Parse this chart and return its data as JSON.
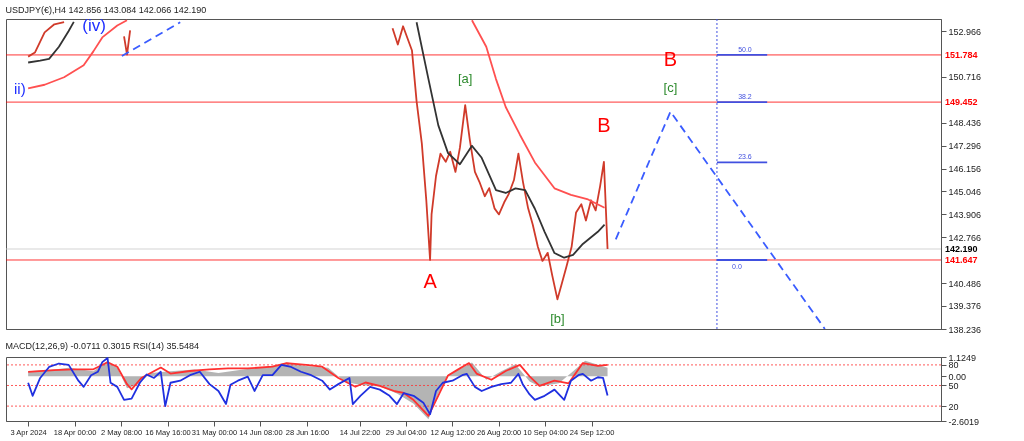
{
  "chart_data": [
    {
      "type": "line",
      "title": "USDJPY(€),H4 142.856 143.084 142.066 142.190",
      "xlim": [
        "2024-03-27T20:00",
        "2025-01-10T07:00"
      ],
      "ylim": [
        138.236,
        153.56
      ],
      "yticks": [
        152.966,
        150.716,
        148.436,
        147.296,
        146.156,
        145.046,
        143.906,
        142.766,
        140.486,
        139.376,
        138.236
      ],
      "tick_labels": "y",
      "grid": false,
      "series": [
        {
          "color": "#d03a2a",
          "x": [
            "2024-04-03T16:00",
            "2024-04-05T18:00",
            "2024-04-08T18:00",
            "2024-04-11T18:00",
            "2024-04-14T18:00",
            "2024-04-17T02:00",
            "2024-05-03T06:00",
            "2024-05-04T04:00",
            "2024-05-05T03:00",
            "2024-05-06T01:00",
            "2024-07-25T02:00",
            "2024-07-26T17:00",
            "2024-07-28T08:00",
            "2024-07-31T02:00",
            "2024-08-01T12:00",
            "2024-08-03T03:00",
            "2024-08-04T12:00",
            "2024-08-05T16:00",
            "2024-08-06T03:00",
            "2024-08-07T12:00",
            "2024-08-08T21:00",
            "2024-08-10T12:00",
            "2024-08-11T21:00",
            "2024-08-13T12:00",
            "2024-08-14T21:00",
            "2024-08-16T12:00",
            "2024-08-17T22:00",
            "2024-08-19T12:00",
            "2024-08-20T22:00",
            "2024-08-22T13:00",
            "2024-08-23T22:00",
            "2024-08-25T13:00",
            "2024-08-26T22:00",
            "2024-08-28T13:00",
            "2024-08-29T22:00",
            "2024-08-31T13:00",
            "2024-09-01T22:00",
            "2024-09-03T08:00",
            "2024-09-04T22:00",
            "2024-09-06T08:00",
            "2024-09-07T22:00",
            "2024-09-09T08:00",
            "2024-09-10T23:00",
            "2024-09-12T08:00",
            "2024-09-13T23:00",
            "2024-09-15T08:00",
            "2024-09-16T17:00",
            "2024-09-18T08:00",
            "2024-09-19T17:00",
            "2024-09-21T08:00",
            "2024-09-22T18:00",
            "2024-09-24T08:00",
            "2024-09-25T18:00",
            "2024-09-27T03:00",
            "2024-09-28T07:00",
            "2024-09-29T10:00"
          ],
          "values": [
            151.7,
            151.9,
            152.9,
            153.3,
            153.4,
            null,
            152.7,
            151.8,
            153.0,
            null,
            153.1,
            152.3,
            153.2,
            152.0,
            149.5,
            147.4,
            144.6,
            141.65,
            143.9,
            145.8,
            146.9,
            146.5,
            147.0,
            146.0,
            147.2,
            149.3,
            147.6,
            146.0,
            145.5,
            144.8,
            145.2,
            144.2,
            143.9,
            144.5,
            144.9,
            145.6,
            146.9,
            145.5,
            144.2,
            143.4,
            142.3,
            141.6,
            142.0,
            140.9,
            139.7,
            140.5,
            141.3,
            142.3,
            144.0,
            144.4,
            143.6,
            144.6,
            144.1,
            145.3,
            146.5,
            142.19
          ]
        },
        {
          "color": "#333333",
          "x": [
            "2024-04-03T16:00",
            "2024-04-07T09:00",
            "2024-04-10T03:00",
            "2024-04-13T04:00",
            "2024-04-16T04:00",
            "2024-04-17T18:00",
            "2024-04-18T17:00",
            "2024-08-01T12:00",
            "2024-08-05T04:00",
            "2024-08-08T05:00",
            "2024-08-11T05:00",
            "2024-08-14T21:00",
            "2024-08-18T14:00",
            "2024-08-21T14:00",
            "2024-08-26T00:00",
            "2024-08-29T00:00",
            "2024-09-01T00:00",
            "2024-09-04T00:00",
            "2024-09-07T00:00",
            "2024-09-10T00:00",
            "2024-09-13T01:00",
            "2024-09-16T01:00",
            "2024-09-18T19:00",
            "2024-09-21T19:00",
            "2024-09-26T10:00",
            "2024-09-28T12:00"
          ],
          "values": [
            151.41,
            151.5,
            151.59,
            152.19,
            152.97,
            153.42,
            null,
            153.4,
            150.59,
            148.3,
            146.93,
            146.38,
            147.29,
            146.7,
            145.1,
            144.96,
            145.19,
            145.1,
            144.18,
            143.04,
            141.99,
            141.76,
            141.9,
            142.44,
            143.04,
            143.4
          ]
        },
        {
          "color": "#ff5050",
          "x": [
            "2024-04-03T16:00",
            "2024-04-08T18:00",
            "2024-04-14T18:00",
            "2024-04-20T19:00",
            "2024-04-23T19:00",
            "2024-04-26T13:00",
            "2024-05-01T04:00",
            "2024-05-04T04:00",
            "2024-05-06T01:00",
            "2024-08-18T14:00",
            "2024-08-23T00:00",
            "2024-08-26T00:00",
            "2024-08-29T00:00",
            "2024-09-02T09:00",
            "2024-09-07T00:00",
            "2024-09-13T01:00",
            "2024-09-18T03:00",
            "2024-09-23T10:00",
            "2024-09-28T12:00"
          ],
          "values": [
            150.13,
            150.31,
            150.68,
            151.27,
            151.96,
            152.65,
            153.24,
            153.5,
            null,
            153.5,
            152.19,
            150.59,
            149.21,
            147.84,
            146.47,
            145.19,
            144.87,
            144.64,
            144.23
          ]
        },
        {
          "color": "#3a5cff",
          "line_style": "dashed",
          "x": [
            "2024-10-01T23:00",
            "2024-10-18T20:00",
            "2024-12-05T11:00"
          ],
          "values": [
            142.67,
            148.98,
            138.24
          ]
        },
        {
          "color": "#3a5cff",
          "line_style": "dashed",
          "x": [
            "2024-05-02T14:00",
            "2024-05-20T14:00"
          ],
          "values": [
            151.73,
            153.4
          ]
        },
        {
          "color": "#4050e0",
          "x": [
            "2024-11-02T04:00",
            "2024-11-17T16:00"
          ],
          "values": [
            151.784,
            151.784
          ]
        },
        {
          "color": "#4050e0",
          "x": [
            "2024-11-02T04:00",
            "2024-11-17T16:00"
          ],
          "values": [
            149.452,
            149.452
          ]
        },
        {
          "color": "#4050e0",
          "x": [
            "2024-11-02T04:00",
            "2024-11-17T16:00"
          ],
          "values": [
            146.47,
            146.47
          ]
        },
        {
          "color": "#4050e0",
          "x": [
            "2024-11-02T04:00",
            "2024-11-17T16:00"
          ],
          "values": [
            141.647,
            141.647
          ]
        }
      ],
      "ref_lines": [
        {
          "axis": "y",
          "value": 151.784,
          "label": "151.784",
          "color": "#ff0000"
        },
        {
          "axis": "y",
          "value": 149.452,
          "label": "149.452",
          "color": "#ff0000"
        },
        {
          "axis": "y",
          "value": 141.647,
          "label": "141.647",
          "color": "#ff0000"
        },
        {
          "axis": "y",
          "value": 142.19,
          "label": "142.190",
          "color": "#c8c8c8"
        },
        {
          "axis": "x",
          "value": "2024-11-02T04:00",
          "label": null,
          "color": "#4050e0",
          "line_style": "dotted"
        }
      ],
      "annotations": [
        {
          "text": "(iv)",
          "x": "2024-05-03T06:00",
          "y": 152.7
        },
        "ii)",
        {
          "text": "A",
          "x": "2024-08-05T16:00",
          "y": 141.65
        },
        {
          "text": "[a]",
          "x": "2024-08-16T12:00",
          "y": 149.3
        },
        {
          "text": "B",
          "x": "2024-09-28T07:00",
          "y": 146.5
        },
        {
          "text": "[b]",
          "x": "2024-09-13T23:00",
          "y": 139.7
        },
        {
          "text": "B",
          "x": "2024-10-18T20:00",
          "y": 148.98
        },
        {
          "text": "[c]",
          "x": "2024-10-18T20:00",
          "y": 148.98
        },
        {
          "text": "50.0",
          "x": "2024-11-02T04:00",
          "y": 151.784
        },
        {
          "text": "38.2",
          "x": "2024-11-02T04:00",
          "y": 149.452
        },
        {
          "text": "23.6",
          "x": "2024-11-02T04:00",
          "y": 146.47
        },
        {
          "text": "0.0",
          "x": "2024-11-02T04:00",
          "y": 141.647
        }
      ]
    },
    {
      "type": "line",
      "title": "MACD(12,26,9) -0.0711 0.3015 RSI(14) 35.5484",
      "xlim": [
        "2024-03-27T20:00",
        "2025-01-10T07:00"
      ],
      "xticks": [
        {
          "value": "2024-04-03T16:00",
          "label": "3 Apr 2024"
        },
        {
          "value": "2024-04-18T00:00",
          "label": "18 Apr 00:00"
        },
        {
          "value": "2024-05-02T08:00",
          "label": "2 May 08:00"
        },
        {
          "value": "2024-05-16T16:00",
          "label": "16 May 16:00"
        },
        {
          "value": "2024-05-31T00:00",
          "label": "31 May 00:00"
        },
        {
          "value": "2024-06-14T08:00",
          "label": "14 Jun 08:00"
        },
        {
          "value": "2024-06-28T16:00",
          "label": "28 Jun 16:00"
        },
        {
          "value": "2024-07-14T22:00",
          "label": "14 Jul 22:00"
        },
        {
          "value": "2024-07-29T04:00",
          "label": "29 Jul 04:00"
        },
        {
          "value": "2024-08-12T12:00",
          "label": "12 Aug 12:00"
        },
        {
          "value": "2024-08-26T20:00",
          "label": "26 Aug 20:00"
        },
        {
          "value": "2024-09-10T04:00",
          "label": "10 Sep 04:00"
        },
        {
          "value": "2024-09-24T12:00",
          "label": "24 Sep 12:00"
        }
      ],
      "ylim": [
        -1.7,
        91.5
      ],
      "yticks": [
        80,
        50,
        20
      ],
      "y2lim": [
        -2.6019,
        1.1249
      ],
      "y2ticks": [
        1.1249,
        {
          "value": 0,
          "label": "0.00"
        },
        -2.6019
      ],
      "grid": false,
      "series": [
        {
          "type": "area",
          "axis": "y2",
          "color": "#b4b4b4",
          "x": [
            "2024-04-03T16:00",
            "2024-04-11T18:00",
            "2024-04-16T04:00",
            "2024-04-23T19:00",
            "2024-04-28T04:00",
            "2024-05-01T04:00",
            "2024-05-04T04:00",
            "2024-05-07T05:00",
            "2024-05-11T14:00",
            "2024-05-17T14:00",
            "2024-05-25T00:00",
            "2024-06-01T09:00",
            "2024-06-09T00:00",
            "2024-06-18T01:00",
            "2024-06-22T10:00",
            "2024-06-28T10:00",
            "2024-07-05T05:00",
            "2024-07-10T05:00",
            "2024-07-15T04:00",
            "2024-07-21T04:00",
            "2024-07-26T11:00",
            "2024-07-31T14:00",
            "2024-08-05T04:00",
            "2024-08-08T05:00",
            "2024-08-11T05:00",
            "2024-08-15T14:00",
            "2024-08-18T14:00",
            "2024-08-23T00:00",
            "2024-08-27T15:00",
            "2024-09-01T00:00",
            "2024-09-05T09:00",
            "2024-09-08T10:00",
            "2024-09-14T10:00",
            "2024-09-18T19:00",
            "2024-09-22T12:00",
            "2024-09-29T10:00"
          ],
          "values": [
            0.3,
            0.4,
            0.5,
            0.3,
            0.9,
            0.5,
            -0.7,
            -0.5,
            0.2,
            0.3,
            0.4,
            0.2,
            0.4,
            0.6,
            0.8,
            0.6,
            0.5,
            -0.3,
            -0.5,
            -0.6,
            -1.0,
            -1.6,
            -2.5,
            -1.0,
            0.1,
            0.5,
            0.8,
            -0.2,
            0.3,
            0.7,
            -0.3,
            -0.6,
            -0.4,
            0.3,
            0.9,
            0.5
          ]
        },
        {
          "axis": "y2",
          "color": "#ff3030",
          "x": [
            "2024-04-03T16:00",
            "2024-04-11T18:00",
            "2024-04-17T18:00",
            "2024-04-23T19:00",
            "2024-04-28T04:00",
            "2024-05-01T04:00",
            "2024-05-04T04:00",
            "2024-05-05T14:00",
            "2024-05-08T14:00",
            "2024-05-14T14:00",
            "2024-05-17T14:00",
            "2024-05-23T14:00",
            "2024-05-29T15:00",
            "2024-06-04T09:00",
            "2024-06-10T10:00",
            "2024-06-18T01:00",
            "2024-06-22T10:00",
            "2024-06-28T10:00",
            "2024-07-03T09:00",
            "2024-07-08T09:00",
            "2024-07-13T15:00",
            "2024-07-16T18:00",
            "2024-07-21T04:00",
            "2024-07-25T19:00",
            "2024-07-28T13:00",
            "2024-07-31T14:00",
            "2024-08-05T04:00",
            "2024-08-08T05:00",
            "2024-08-11T05:00",
            "2024-08-13T23:00",
            "2024-08-17T16:00",
            "2024-08-20T00:00",
            "2024-08-24T14:00",
            "2024-08-29T00:00",
            "2024-09-02T09:00",
            "2024-09-05T09:00",
            "2024-09-08T10:00",
            "2024-09-13T01:00",
            "2024-09-17T10:00",
            "2024-09-21T19:00",
            "2024-09-26T10:00",
            "2024-09-29T10:00"
          ],
          "values": [
            0.26,
            0.36,
            0.41,
            0.41,
            0.82,
            0.56,
            -0.46,
            -0.76,
            -0.1,
            0.51,
            0.16,
            0.31,
            0.41,
            0.46,
            0.46,
            0.56,
            0.77,
            0.67,
            0.56,
            -0.1,
            -0.61,
            -0.36,
            -0.56,
            -0.87,
            -0.97,
            -1.38,
            -2.3,
            -1.12,
            0.05,
            0.36,
            0.77,
            0.16,
            -0.2,
            0.31,
            0.67,
            0.0,
            -0.56,
            -0.25,
            -0.41,
            0.77,
            0.61,
            0.67
          ]
        },
        {
          "color": "#2030e0",
          "x": [
            "2024-04-03T16:00",
            "2024-04-05T01:00",
            "2024-04-07T09:00",
            "2024-04-10T03:00",
            "2024-04-13T04:00",
            "2024-04-16T04:00",
            "2024-04-19T04:00",
            "2024-04-20T19:00",
            "2024-04-23T02:00",
            "2024-04-25T04:00",
            "2024-04-26T13:00",
            "2024-04-28T04:00",
            "2024-04-29T02:00",
            "2024-05-01T04:00",
            "2024-05-03T06:00",
            "2024-05-05T14:00",
            "2024-05-08T03:00",
            "2024-05-10T05:00",
            "2024-05-12T12:00",
            "2024-05-14T14:00",
            "2024-05-15T23:00",
            "2024-05-17T14:00",
            "2024-05-20T14:00",
            "2024-05-23T14:00",
            "2024-05-26T15:00",
            "2024-05-29T15:00",
            "2024-06-01T09:00",
            "2024-06-03T17:00",
            "2024-06-05T02:00",
            "2024-06-07T09:00",
            "2024-06-10T10:00",
            "2024-06-12T12:00",
            "2024-06-15T01:00",
            "2024-06-18T01:00",
            "2024-06-20T19:00",
            "2024-06-23T19:00",
            "2024-06-26T20:00",
            "2024-06-30T00:00",
            "2024-07-03T09:00",
            "2024-07-05T18:00",
            "2024-07-08T09:00",
            "2024-07-11T19:00",
            "2024-07-12T20:00",
            "2024-07-15T04:00",
            "2024-07-18T04:00",
            "2024-07-21T04:00",
            "2024-07-24T04:00",
            "2024-07-26T11:00",
            "2024-07-28T13:00",
            "2024-07-31T14:00",
            "2024-08-03T14:00",
            "2024-08-05T16:00",
            "2024-08-07T12:00",
            "2024-08-09T14:00",
            "2024-08-12T14:00",
            "2024-08-15T14:00",
            "2024-08-16T23:00",
            "2024-08-19T12:00",
            "2024-08-21T14:00",
            "2024-08-24T14:00",
            "2024-08-27T15:00",
            "2024-08-30T15:00",
            "2024-09-01T22:00",
            "2024-09-03T08:00",
            "2024-09-05T09:00",
            "2024-09-07T00:00",
            "2024-09-10T00:00",
            "2024-09-13T01:00",
            "2024-09-16T01:00",
            "2024-09-18T03:00",
            "2024-09-20T10:00",
            "2024-09-21T19:00",
            "2024-09-24T08:00",
            "2024-09-26T10:00",
            "2024-09-28T01:00",
            "2024-09-29T10:00"
          ],
          "values": [
            54,
            35,
            61,
            77,
            82,
            80,
            57,
            48,
            65,
            70,
            84,
            90,
            54,
            48,
            29,
            31,
            54,
            66,
            61,
            70,
            20,
            54,
            57,
            65,
            70,
            52,
            42,
            23,
            51,
            57,
            63,
            42,
            65,
            65,
            80,
            77,
            70,
            65,
            57,
            44,
            52,
            61,
            23,
            35,
            48,
            44,
            35,
            23,
            39,
            35,
            25,
            8,
            42,
            54,
            57,
            65,
            67,
            48,
            42,
            48,
            52,
            54,
            67,
            51,
            37,
            29,
            35,
            44,
            29,
            57,
            65,
            67,
            57,
            62,
            61,
            35.5
          ]
        }
      ],
      "ref_lines": [
        {
          "axis": "y",
          "value": 80,
          "label": null,
          "color": "#ff3030",
          "line_style": "dotted"
        },
        {
          "axis": "y",
          "value": 50,
          "label": null,
          "color": "#ff3030",
          "line_style": "dotted"
        },
        {
          "axis": "y",
          "value": 20,
          "label": null,
          "color": "#ff3030",
          "line_style": "dotted"
        }
      ]
    }
  ]
}
